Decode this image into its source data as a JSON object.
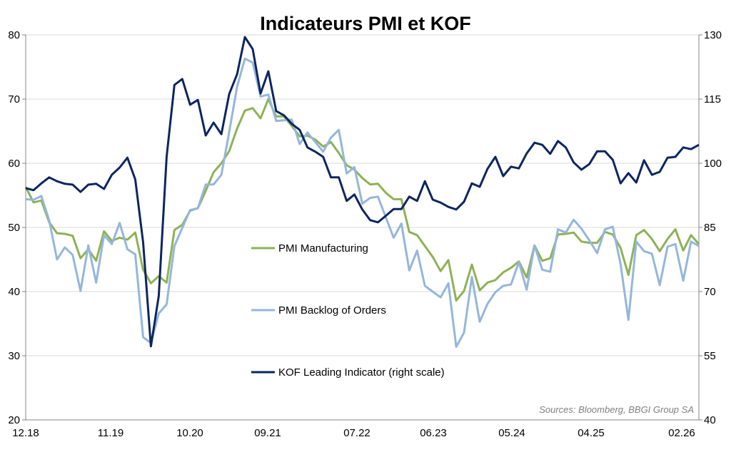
{
  "chart_data": {
    "type": "line",
    "title": "Indicateurs PMI et KOF",
    "source": "Sources: Bloomberg, BBGI Group SA",
    "x_tick_labels": [
      "12.18",
      "11.19",
      "10.20",
      "09.21",
      "07.22",
      "06.23",
      "05.24",
      "04.25",
      "02.26"
    ],
    "x_range": [
      "12.18",
      "02.26"
    ],
    "frequency": "monthly",
    "left_axis": {
      "ylim": [
        20,
        80
      ],
      "ticks": [
        "20",
        "30",
        "40",
        "50",
        "60",
        "70",
        "80"
      ]
    },
    "right_axis": {
      "ylim": [
        40,
        130
      ],
      "ticks": [
        "40",
        "55",
        "70",
        "85",
        "100",
        "115",
        "130"
      ]
    },
    "grid": true,
    "series": [
      {
        "name": "PMI Manufacturing",
        "axis": "left",
        "color": "#8db255",
        "values": [
          56.3,
          53.9,
          54.2,
          50.8,
          49.1,
          49.0,
          48.7,
          45.2,
          46.6,
          44.8,
          49.4,
          47.9,
          48.4,
          48.1,
          49.2,
          43.4,
          41.3,
          42.4,
          41.4,
          49.6,
          50.4,
          52.6,
          53.0,
          55.7,
          58.6,
          60.0,
          61.9,
          65.4,
          68.2,
          68.6,
          67.0,
          70.0,
          67.3,
          67.3,
          65.8,
          64.2,
          64.3,
          63.7,
          62.6,
          63.3,
          61.6,
          59.7,
          59.0,
          57.7,
          56.7,
          56.8,
          55.4,
          54.4,
          54.4,
          49.3,
          48.8,
          47.1,
          45.4,
          43.2,
          44.9,
          38.6,
          40.1,
          44.2,
          40.2,
          41.4,
          41.8,
          43.0,
          43.7,
          44.7,
          42.2,
          47.2,
          44.8,
          45.2,
          48.9,
          49.0,
          49.2,
          47.8,
          47.6,
          47.6,
          49.3,
          48.9,
          46.8,
          42.6,
          48.8,
          49.6,
          48.2,
          46.3,
          48.2,
          49.7,
          46.4,
          48.8,
          47.4
        ]
      },
      {
        "name": "PMI Backlog of Orders",
        "axis": "left",
        "color": "#95b6dc",
        "values": [
          54.4,
          54.3,
          54.9,
          51.1,
          45.0,
          46.9,
          45.7,
          40.1,
          47.2,
          41.4,
          48.8,
          47.4,
          50.7,
          46.6,
          45.8,
          32.9,
          32.0,
          36.6,
          38.0,
          47.1,
          49.9,
          52.7,
          53.0,
          56.7,
          56.7,
          58.2,
          64.9,
          71.9,
          76.3,
          75.7,
          70.4,
          70.7,
          66.6,
          66.7,
          66.8,
          63.0,
          64.8,
          63.3,
          61.8,
          64.0,
          65.2,
          58.4,
          59.4,
          53.7,
          54.6,
          54.8,
          51.6,
          48.4,
          50.6,
          43.3,
          46.4,
          40.9,
          40.0,
          39.1,
          41.3,
          31.4,
          33.6,
          42.3,
          35.3,
          38.1,
          39.9,
          40.9,
          41.1,
          44.6,
          40.3,
          47.2,
          43.4,
          43.1,
          49.7,
          49.2,
          51.2,
          49.8,
          48.0,
          46.0,
          49.7,
          50.1,
          44.3,
          35.6,
          47.8,
          46.3,
          45.9,
          41.0,
          47.0,
          47.4,
          41.7,
          47.8,
          47.1
        ]
      },
      {
        "name": "KOF Leading Indicator (right scale)",
        "axis": "right",
        "color": "#0d2660",
        "values": [
          94.2,
          93.7,
          95.3,
          96.7,
          95.8,
          95.2,
          95.0,
          93.3,
          95.0,
          95.2,
          94.0,
          97.3,
          99.0,
          101.3,
          96.2,
          81.5,
          57.2,
          69.0,
          101.5,
          118.3,
          119.7,
          113.7,
          114.8,
          106.5,
          109.5,
          106.8,
          116.2,
          120.8,
          129.5,
          126.7,
          116.3,
          121.5,
          112.2,
          111.2,
          109.2,
          107.8,
          103.7,
          102.7,
          101.5,
          96.7,
          96.7,
          91.2,
          92.7,
          89.2,
          86.7,
          86.2,
          87.7,
          89.3,
          89.3,
          92.2,
          91.2,
          95.8,
          91.5,
          90.8,
          89.8,
          89.2,
          91.0,
          95.3,
          94.5,
          98.7,
          101.5,
          97.0,
          99.2,
          98.8,
          102.3,
          104.8,
          104.3,
          102.2,
          105.2,
          103.7,
          100.2,
          98.5,
          99.8,
          102.8,
          102.8,
          100.8,
          95.3,
          97.7,
          95.5,
          100.7,
          97.3,
          98.0,
          101.3,
          101.5,
          103.7,
          103.3,
          104.3
        ]
      }
    ]
  }
}
